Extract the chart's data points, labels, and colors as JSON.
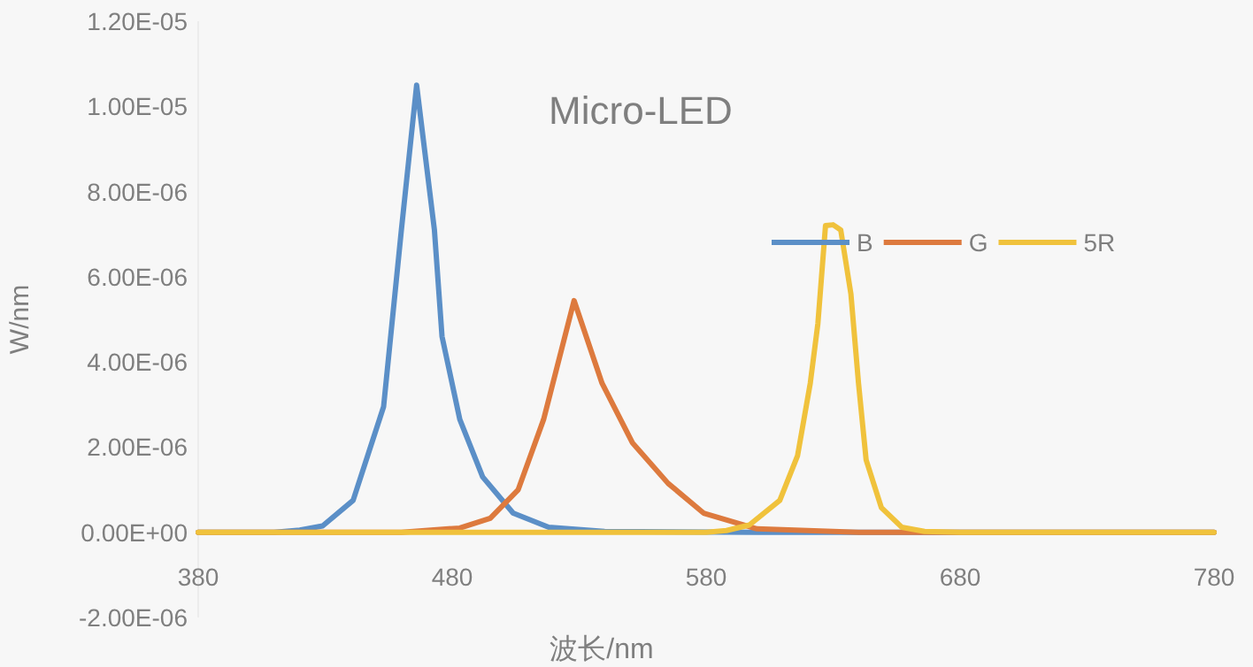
{
  "chart_data": {
    "type": "line",
    "title": "Micro-LED",
    "xlabel": "波长/nm",
    "ylabel": "W/nm",
    "xlim": [
      380,
      780
    ],
    "xticks": [
      380,
      480,
      580,
      680,
      780
    ],
    "ylim": [
      -2e-06,
      1.2e-05
    ],
    "yticks": [
      {
        "value": -2e-06,
        "label": "-2.00E-06"
      },
      {
        "value": 0,
        "label": "0.00E+00"
      },
      {
        "value": 2e-06,
        "label": "2.00E-06"
      },
      {
        "value": 4e-06,
        "label": "4.00E-06"
      },
      {
        "value": 6e-06,
        "label": "6.00E-06"
      },
      {
        "value": 8e-06,
        "label": "8.00E-06"
      },
      {
        "value": 1e-05,
        "label": "1.00E-05"
      },
      {
        "value": 1.2e-05,
        "label": "1.20E-05"
      }
    ],
    "grid": false,
    "legend": "top right",
    "marker": "none",
    "line_style": "solid",
    "series": [
      {
        "name": "B",
        "color": "#5b8fc7",
        "x": [
          380,
          410,
          420,
          429,
          441,
          453,
          460,
          466,
          473,
          476,
          483,
          492,
          504,
          518,
          540,
          600,
          780
        ],
        "values": [
          0,
          0,
          5e-08,
          1.5e-07,
          7.5e-07,
          2.95e-06,
          7.1e-06,
          1.05e-05,
          7.1e-06,
          4.6e-06,
          2.65e-06,
          1.3e-06,
          4.5e-07,
          1.2e-07,
          2e-08,
          0,
          0
        ]
      },
      {
        "name": "G",
        "color": "#dd7a3e",
        "x": [
          380,
          460,
          483,
          495,
          506,
          516,
          528,
          539,
          551,
          565,
          579,
          600,
          640,
          780
        ],
        "values": [
          0,
          0,
          1e-07,
          3.3e-07,
          1e-06,
          2.65e-06,
          5.44e-06,
          3.5e-06,
          2.1e-06,
          1.15e-06,
          4.5e-07,
          8e-08,
          0,
          0
        ]
      },
      {
        "name": "5R",
        "color": "#f0c23c",
        "x": [
          380,
          580,
          588,
          597,
          609,
          616,
          621,
          624,
          627,
          630,
          633,
          637,
          640,
          643,
          649,
          657,
          666,
          680,
          780
        ],
        "values": [
          0,
          0,
          4e-08,
          1.7e-07,
          7.5e-07,
          1.8e-06,
          3.5e-06,
          4.9e-06,
          7.2e-06,
          7.22e-06,
          7.1e-06,
          5.6e-06,
          3.5e-06,
          1.7e-06,
          5.8e-07,
          1.2e-07,
          2e-08,
          0,
          0
        ]
      }
    ]
  }
}
